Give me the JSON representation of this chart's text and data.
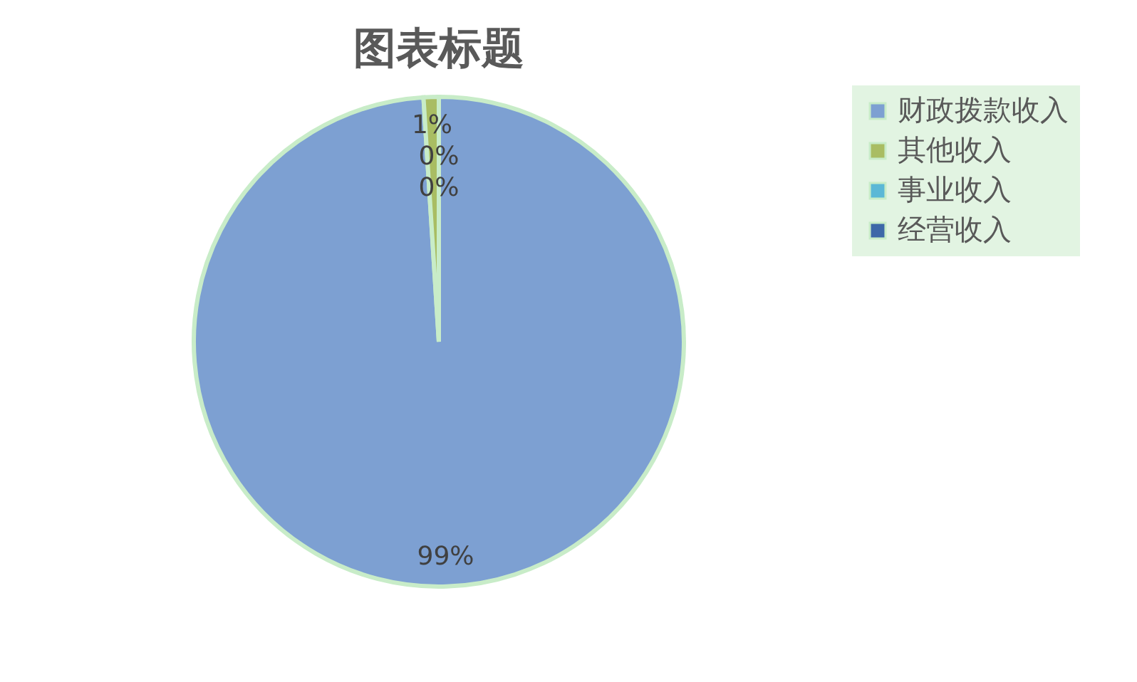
{
  "chart_data": {
    "type": "pie",
    "title": "图表标题",
    "categories": [
      "财政拨款收入",
      "其他收入",
      "事业收入",
      "经营收入"
    ],
    "values": [
      99,
      1,
      0,
      0
    ],
    "colors": [
      "#7da0d2",
      "#a9bd63",
      "#5bb8d6",
      "#3d68a8"
    ],
    "value_labels": [
      "99%",
      "1%",
      "0%",
      "0%"
    ],
    "legend": "right"
  }
}
